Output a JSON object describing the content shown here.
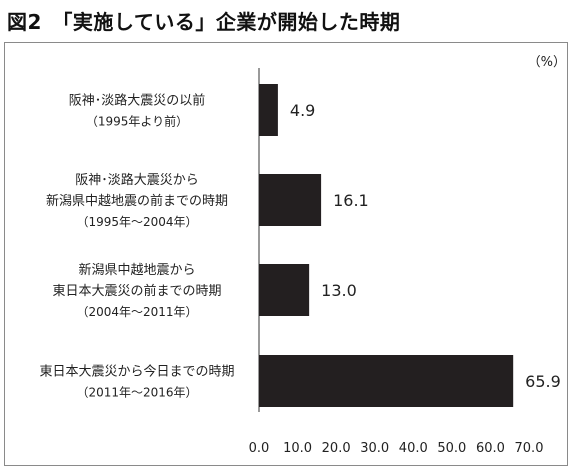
{
  "title": "図2　「実施している」企業が開始した時期",
  "chart_data": {
    "type": "bar",
    "orientation": "horizontal",
    "unit": "（%）",
    "categories": [
      [
        "阪神･淡路大震災の以前",
        "（1995年より前）"
      ],
      [
        "阪神･淡路大震災から",
        "新潟県中越地震の前までの時期",
        "（1995年～2004年）"
      ],
      [
        "新潟県中越地震から",
        "東日本大震災の前までの時期",
        "（2004年～2011年）"
      ],
      [
        "東日本大震災から今日までの時期",
        "（2011年～2016年）"
      ]
    ],
    "values": [
      4.9,
      16.1,
      13.0,
      65.9
    ],
    "value_labels": [
      "4.9",
      "16.1",
      "13.0",
      "65.9"
    ],
    "xlim": [
      0,
      70
    ],
    "ticks": [
      "0.0",
      "10.0",
      "20.0",
      "30.0",
      "40.0",
      "50.0",
      "60.0",
      "70.0"
    ],
    "bar_color": "#231f20",
    "axis_color": "#9a9a9a"
  }
}
